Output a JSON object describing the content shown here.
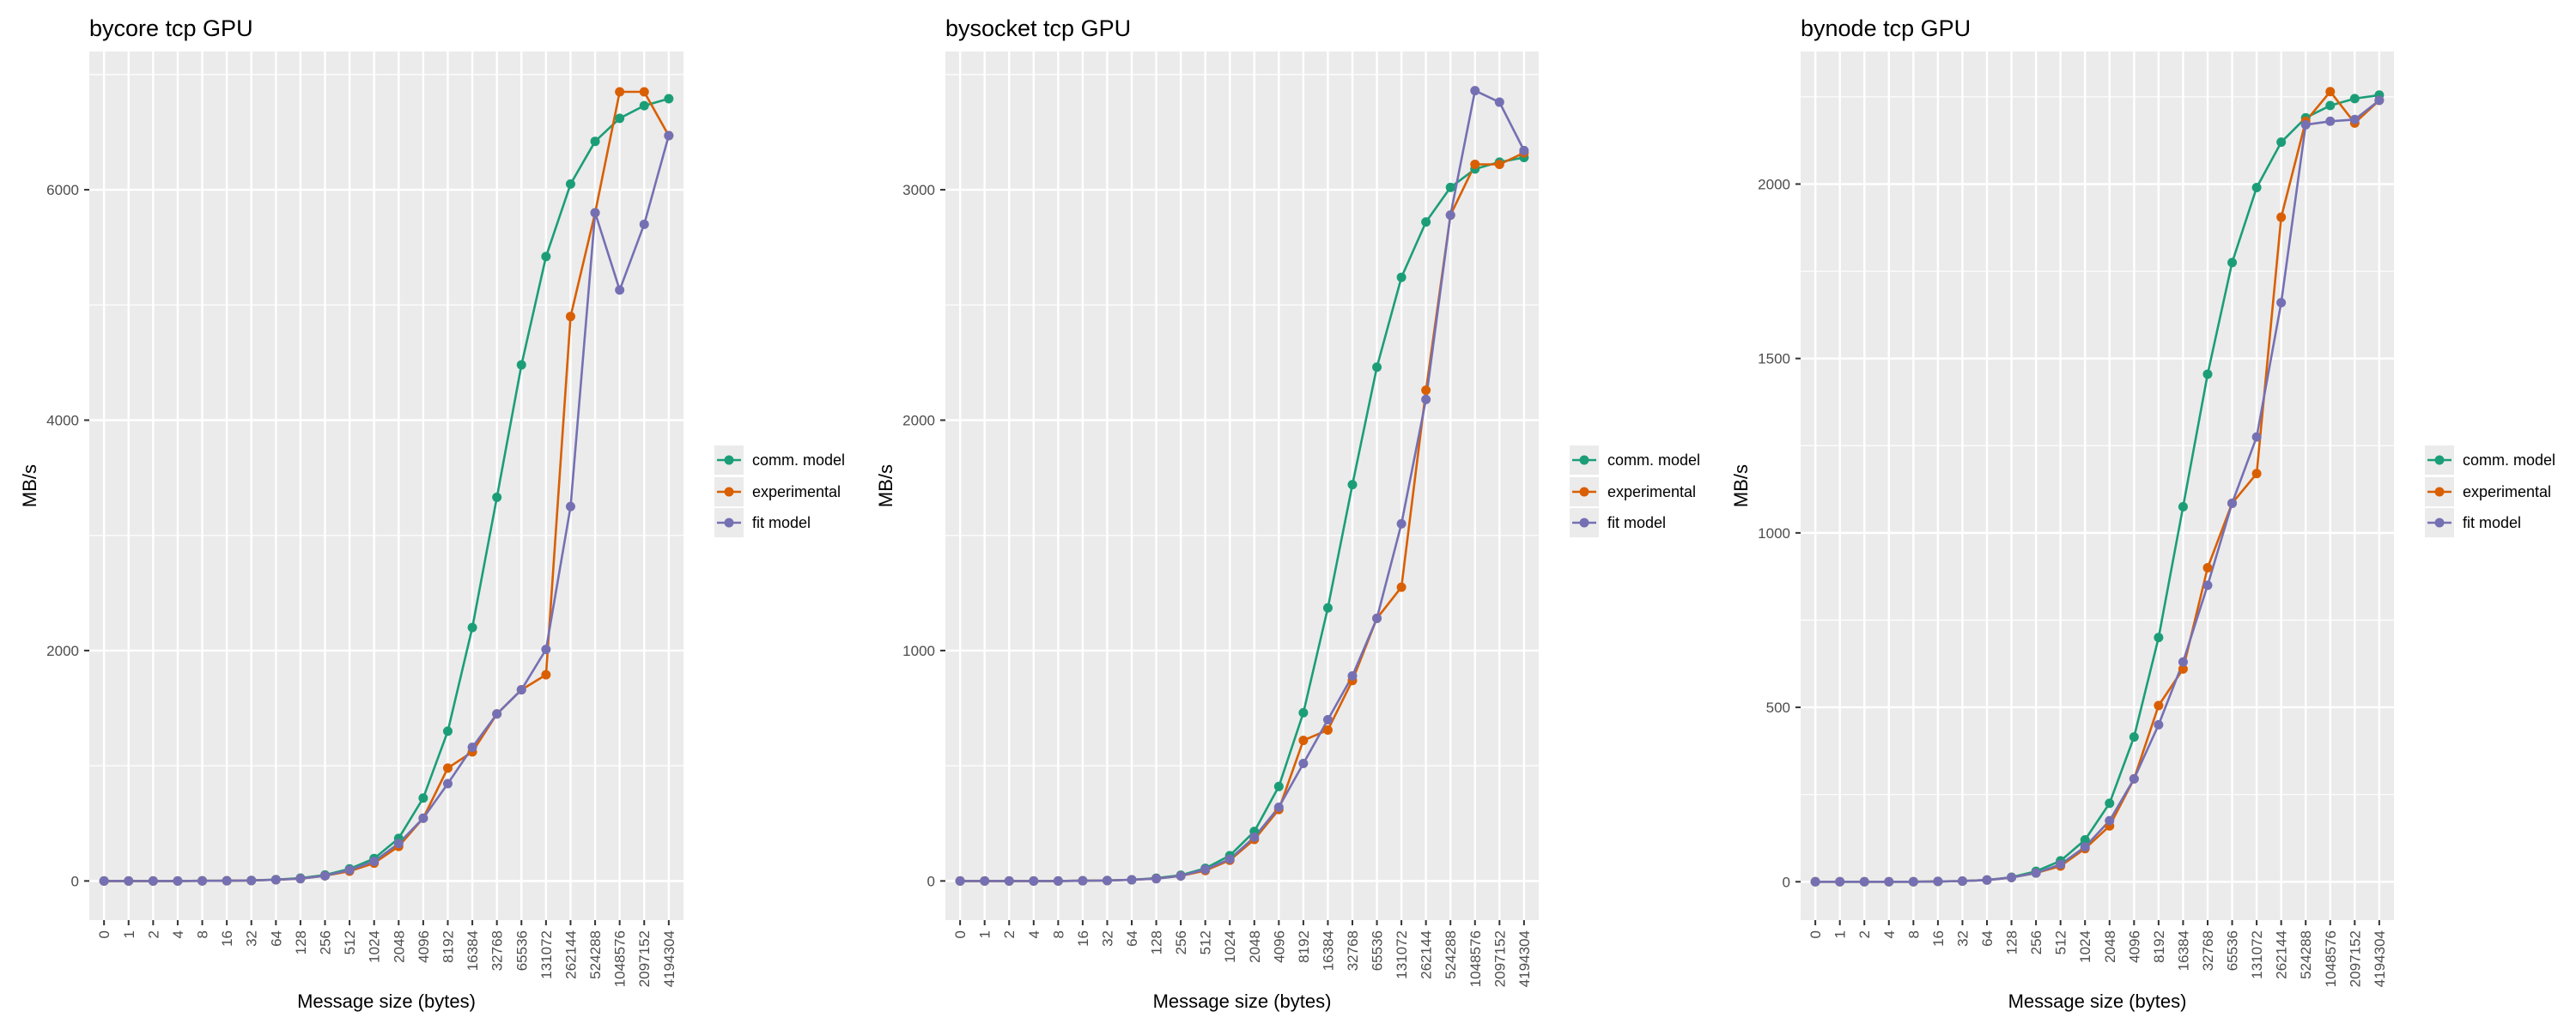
{
  "colors": {
    "panel_bg": "#ebebeb",
    "grid": "#ffffff",
    "comm_model": "#1b9e77",
    "experimental": "#d95f02",
    "fit_model": "#7570b3",
    "text": "#000000",
    "tick_text": "#4d4d4d"
  },
  "chart_data": [
    {
      "type": "line",
      "title": "bycore tcp GPU",
      "xlabel": "Message size (bytes)",
      "ylabel": "MB/s",
      "categories": [
        "0",
        "1",
        "2",
        "4",
        "8",
        "16",
        "32",
        "64",
        "128",
        "256",
        "512",
        "1024",
        "2048",
        "4096",
        "8192",
        "16384",
        "32768",
        "65536",
        "131072",
        "262144",
        "524288",
        "1048576",
        "2097152",
        "4194304"
      ],
      "ylim": [
        -340,
        7200
      ],
      "yticks": [
        0,
        2000,
        4000,
        6000
      ],
      "grid": true,
      "legend_position": "right",
      "series": [
        {
          "name": "comm. model",
          "color": "#1b9e77",
          "values": [
            0,
            0,
            0,
            0,
            1,
            2,
            5,
            12,
            25,
            52,
            105,
            195,
            370,
            720,
            1300,
            2200,
            3330,
            4480,
            5420,
            6050,
            6420,
            6620,
            6730,
            6790
          ]
        },
        {
          "name": "experimental",
          "color": "#d95f02",
          "values": [
            0,
            0,
            0,
            0,
            1,
            2,
            4,
            10,
            20,
            45,
            85,
            155,
            300,
            545,
            980,
            1120,
            1450,
            1660,
            1790,
            4900,
            5800,
            6850,
            6850,
            6470
          ]
        },
        {
          "name": "fit model",
          "color": "#7570b3",
          "values": [
            0,
            0,
            0,
            0,
            1,
            2,
            4,
            10,
            20,
            45,
            95,
            170,
            325,
            545,
            845,
            1160,
            1450,
            1660,
            2010,
            3250,
            5800,
            5130,
            5700,
            6470
          ]
        }
      ]
    },
    {
      "type": "line",
      "title": "bysocket tcp GPU",
      "xlabel": "Message size (bytes)",
      "ylabel": "MB/s",
      "categories": [
        "0",
        "1",
        "2",
        "4",
        "8",
        "16",
        "32",
        "64",
        "128",
        "256",
        "512",
        "1024",
        "2048",
        "4096",
        "8192",
        "16384",
        "32768",
        "65536",
        "131072",
        "262144",
        "524288",
        "1048576",
        "2097152",
        "4194304"
      ],
      "ylim": [
        -170,
        3600
      ],
      "yticks": [
        0,
        1000,
        2000,
        3000
      ],
      "grid": true,
      "legend_position": "right",
      "series": [
        {
          "name": "comm. model",
          "color": "#1b9e77",
          "values": [
            0,
            0,
            0,
            0,
            0,
            1,
            2,
            5,
            12,
            25,
            55,
            110,
            215,
            410,
            730,
            1185,
            1720,
            2230,
            2620,
            2860,
            3010,
            3090,
            3120,
            3140
          ]
        },
        {
          "name": "experimental",
          "color": "#d95f02",
          "values": [
            0,
            0,
            0,
            0,
            0,
            1,
            2,
            5,
            10,
            22,
            45,
            90,
            180,
            310,
            610,
            655,
            870,
            1140,
            1275,
            2130,
            2890,
            3110,
            3110,
            3160
          ]
        },
        {
          "name": "fit model",
          "color": "#7570b3",
          "values": [
            0,
            0,
            0,
            0,
            0,
            1,
            2,
            5,
            10,
            22,
            50,
            95,
            190,
            320,
            510,
            700,
            890,
            1140,
            1550,
            2090,
            2890,
            3430,
            3380,
            3170
          ]
        }
      ]
    },
    {
      "type": "line",
      "title": "bynode tcp GPU",
      "xlabel": "Message size (bytes)",
      "ylabel": "MB/s",
      "categories": [
        "0",
        "1",
        "2",
        "4",
        "8",
        "16",
        "32",
        "64",
        "128",
        "256",
        "512",
        "1024",
        "2048",
        "4096",
        "8192",
        "16384",
        "32768",
        "65536",
        "131072",
        "262144",
        "524288",
        "1048576",
        "2097152",
        "4194304"
      ],
      "ylim": [
        -110,
        2380
      ],
      "yticks": [
        0,
        500,
        1000,
        1500,
        2000
      ],
      "grid": true,
      "legend_position": "right",
      "series": [
        {
          "name": "comm. model",
          "color": "#1b9e77",
          "values": [
            0,
            0,
            0,
            0,
            0,
            1,
            2,
            5,
            13,
            30,
            60,
            120,
            225,
            415,
            700,
            1075,
            1455,
            1775,
            1990,
            2120,
            2190,
            2225,
            2245,
            2255
          ]
        },
        {
          "name": "experimental",
          "color": "#d95f02",
          "values": [
            0,
            0,
            0,
            0,
            0,
            1,
            2,
            5,
            12,
            25,
            45,
            95,
            160,
            295,
            505,
            610,
            900,
            1085,
            1170,
            1905,
            2180,
            2265,
            2175,
            2240
          ]
        },
        {
          "name": "fit model",
          "color": "#7570b3",
          "values": [
            0,
            0,
            0,
            0,
            0,
            1,
            2,
            5,
            12,
            25,
            50,
            100,
            175,
            295,
            450,
            630,
            850,
            1085,
            1275,
            1660,
            2170,
            2180,
            2185,
            2240
          ]
        }
      ]
    }
  ]
}
